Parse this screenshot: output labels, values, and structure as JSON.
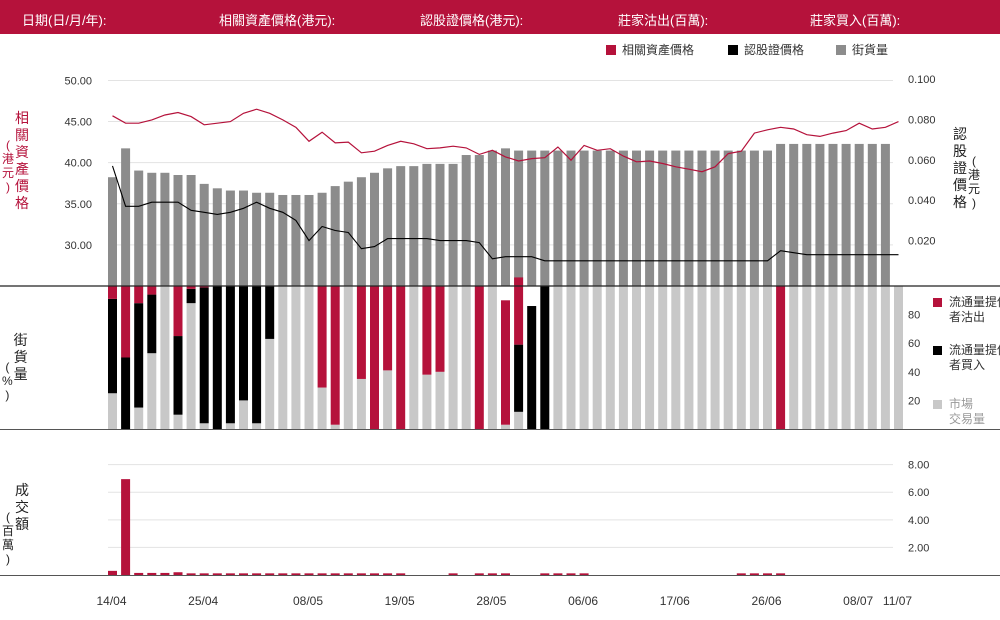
{
  "colors": {
    "header_bg": "#b5123b",
    "asset": "#b5123b",
    "warrant": "#000000",
    "outstanding": "#8c8c8c",
    "market": "#c8c8c8",
    "grid": "#e3e3e3"
  },
  "header": {
    "date": "日期(日/月/年):",
    "asset_price": "相關資產價格(港元):",
    "warrant_price": "認股證價格(港元):",
    "lp_sell": "莊家沽出(百萬):",
    "lp_buy": "莊家買入(百萬):"
  },
  "side_labels": {
    "left_top_text": "相關資產價格",
    "left_top_unit": "港元",
    "right_top_text": "認股證價格",
    "right_top_unit": "港元",
    "left_mid_text": "街貨量",
    "left_mid_unit": "%",
    "left_bot_text": "成交額",
    "left_bot_unit": "百萬"
  },
  "chart_data": {
    "type": "combo",
    "x": [
      "14/04",
      "15/04",
      "16/04",
      "17/04",
      "22/04",
      "23/04",
      "24/04",
      "25/04",
      "28/04",
      "29/04",
      "30/04",
      "02/05",
      "05/05",
      "06/05",
      "07/05",
      "08/05",
      "09/05",
      "12/05",
      "13/05",
      "14/05",
      "15/05",
      "16/05",
      "19/05",
      "20/05",
      "21/05",
      "22/05",
      "23/05",
      "26/05",
      "27/05",
      "28/05",
      "29/05",
      "30/05",
      "02/06",
      "03/06",
      "04/06",
      "05/06",
      "06/06",
      "09/06",
      "10/06",
      "11/06",
      "12/06",
      "13/06",
      "16/06",
      "17/06",
      "18/06",
      "19/06",
      "20/06",
      "23/06",
      "24/06",
      "25/06",
      "26/06",
      "27/06",
      "30/06",
      "02/07",
      "03/07",
      "04/07",
      "07/07",
      "08/07",
      "09/07",
      "10/07",
      "11/07"
    ],
    "x_tick_labels": [
      "14/04",
      "25/04",
      "08/05",
      "19/05",
      "28/05",
      "06/06",
      "17/06",
      "26/06",
      "08/07",
      "11/07"
    ],
    "legend": [
      "相關資產價格",
      "認股證價格",
      "街貨量"
    ],
    "legend_bottom": [
      "流通量提供者沽出",
      "流通量提供者買入",
      "市場交易量"
    ],
    "price_panel": {
      "left_ticks": [
        "50.00",
        "45.00",
        "40.00",
        "35.00",
        "30.00"
      ],
      "left_range": [
        25,
        52
      ],
      "right_ticks": [
        "0.100",
        "0.080",
        "0.060",
        "0.040",
        "0.020"
      ],
      "right_range": [
        -0.0025,
        0.1075
      ],
      "asset_price": [
        45.7,
        44.8,
        44.8,
        45.2,
        45.8,
        46.1,
        45.6,
        44.6,
        44.8,
        45.0,
        46.0,
        46.5,
        46.0,
        45.2,
        44.3,
        42.6,
        43.7,
        42.4,
        42.5,
        41.2,
        41.4,
        42.1,
        42.6,
        42.3,
        41.7,
        41.8,
        42.0,
        41.8,
        41.0,
        41.5,
        40.7,
        40.2,
        40.5,
        40.6,
        41.9,
        40.3,
        42.1,
        41.5,
        41.7,
        40.8,
        40.1,
        40.2,
        39.9,
        39.5,
        39.2,
        38.9,
        39.5,
        41.1,
        41.4,
        43.6,
        44.0,
        44.3,
        44.1,
        43.4,
        43.2,
        43.6,
        43.9,
        44.8,
        44.1,
        44.3,
        45.0
      ],
      "warrant_price": [
        0.057,
        0.037,
        0.037,
        0.039,
        0.039,
        0.039,
        0.035,
        0.034,
        0.033,
        0.034,
        0.036,
        0.039,
        0.036,
        0.034,
        0.03,
        0.02,
        0.027,
        0.025,
        0.024,
        0.016,
        0.017,
        0.021,
        0.021,
        0.021,
        0.021,
        0.02,
        0.02,
        0.02,
        0.019,
        0.011,
        0.012,
        0.012,
        0.012,
        0.01,
        0.01,
        0.01,
        0.01,
        0.01,
        0.01,
        0.01,
        0.01,
        0.01,
        0.01,
        0.01,
        0.01,
        0.01,
        0.01,
        0.01,
        0.01,
        0.01,
        0.01,
        0.015,
        0.014,
        0.013,
        0.013,
        0.013,
        0.013,
        0.013,
        0.013,
        0.013,
        0.013
      ],
      "outstanding_pct": [
        49,
        62,
        52,
        51,
        51,
        50,
        50,
        46,
        44,
        43,
        43,
        42,
        42,
        41,
        41,
        41,
        42,
        45,
        47,
        49,
        51,
        53,
        54,
        54,
        55,
        55,
        55,
        59,
        59,
        61,
        62,
        61,
        61,
        61,
        61,
        61,
        61,
        61,
        61,
        61,
        61,
        61,
        61,
        61,
        61,
        61,
        61,
        61,
        61,
        61,
        61,
        64,
        64,
        64,
        64,
        64,
        64,
        64,
        64,
        64,
        0
      ]
    },
    "pct_panel": {
      "ticks": [
        "80",
        "60",
        "40",
        "20"
      ],
      "range": [
        0,
        100
      ],
      "lp_sell": [
        9,
        50,
        12,
        6,
        0,
        35,
        2,
        1,
        0,
        0,
        0,
        0,
        0,
        0,
        0,
        0,
        71,
        97,
        0,
        65,
        100,
        59,
        100,
        0,
        62,
        60,
        0,
        0,
        100,
        0,
        87,
        47,
        0,
        0,
        0,
        0,
        0,
        0,
        0,
        0,
        0,
        0,
        0,
        0,
        0,
        0,
        0,
        0,
        0,
        0,
        0,
        100,
        0,
        0,
        0,
        0,
        0,
        0,
        0,
        0,
        0
      ],
      "lp_buy": [
        66,
        50,
        73,
        41,
        0,
        55,
        10,
        95,
        100,
        96,
        80,
        96,
        37,
        0,
        0,
        0,
        0,
        0,
        0,
        0,
        0,
        0,
        0,
        0,
        0,
        0,
        0,
        0,
        0,
        0,
        0,
        47,
        86,
        100,
        0,
        0,
        0,
        0,
        0,
        0,
        0,
        0,
        0,
        0,
        0,
        0,
        0,
        0,
        0,
        0,
        0,
        0,
        0,
        0,
        0,
        0,
        0,
        0,
        0,
        0,
        0
      ],
      "market": [
        25,
        0,
        15,
        53,
        100,
        10,
        88,
        4,
        0,
        4,
        20,
        4,
        63,
        100,
        100,
        100,
        29,
        3,
        100,
        35,
        0,
        41,
        0,
        100,
        38,
        40,
        100,
        100,
        0,
        100,
        3,
        12,
        0,
        0,
        100,
        100,
        100,
        100,
        100,
        100,
        100,
        100,
        100,
        100,
        100,
        100,
        100,
        100,
        100,
        100,
        100,
        0,
        100,
        100,
        100,
        100,
        100,
        100,
        100,
        100,
        100
      ]
    },
    "turnover_panel": {
      "ticks": [
        "8.00",
        "6.00",
        "4.00",
        "2.00"
      ],
      "range": [
        0,
        8.7
      ],
      "turnover": [
        0.3,
        6.95,
        0.15,
        0.15,
        0.15,
        0.2,
        0.12,
        0.12,
        0.12,
        0.12,
        0.12,
        0.12,
        0.12,
        0.12,
        0.12,
        0.12,
        0.12,
        0.12,
        0.12,
        0.12,
        0.12,
        0.12,
        0.12,
        0,
        0,
        0,
        0.12,
        0,
        0.12,
        0.12,
        0.12,
        0,
        0,
        0.12,
        0.12,
        0.12,
        0.12,
        0,
        0,
        0,
        0,
        0,
        0,
        0,
        0,
        0,
        0,
        0,
        0.12,
        0.12,
        0.12,
        0.12,
        0,
        0,
        0,
        0,
        0,
        0,
        0,
        0,
        0
      ]
    }
  }
}
